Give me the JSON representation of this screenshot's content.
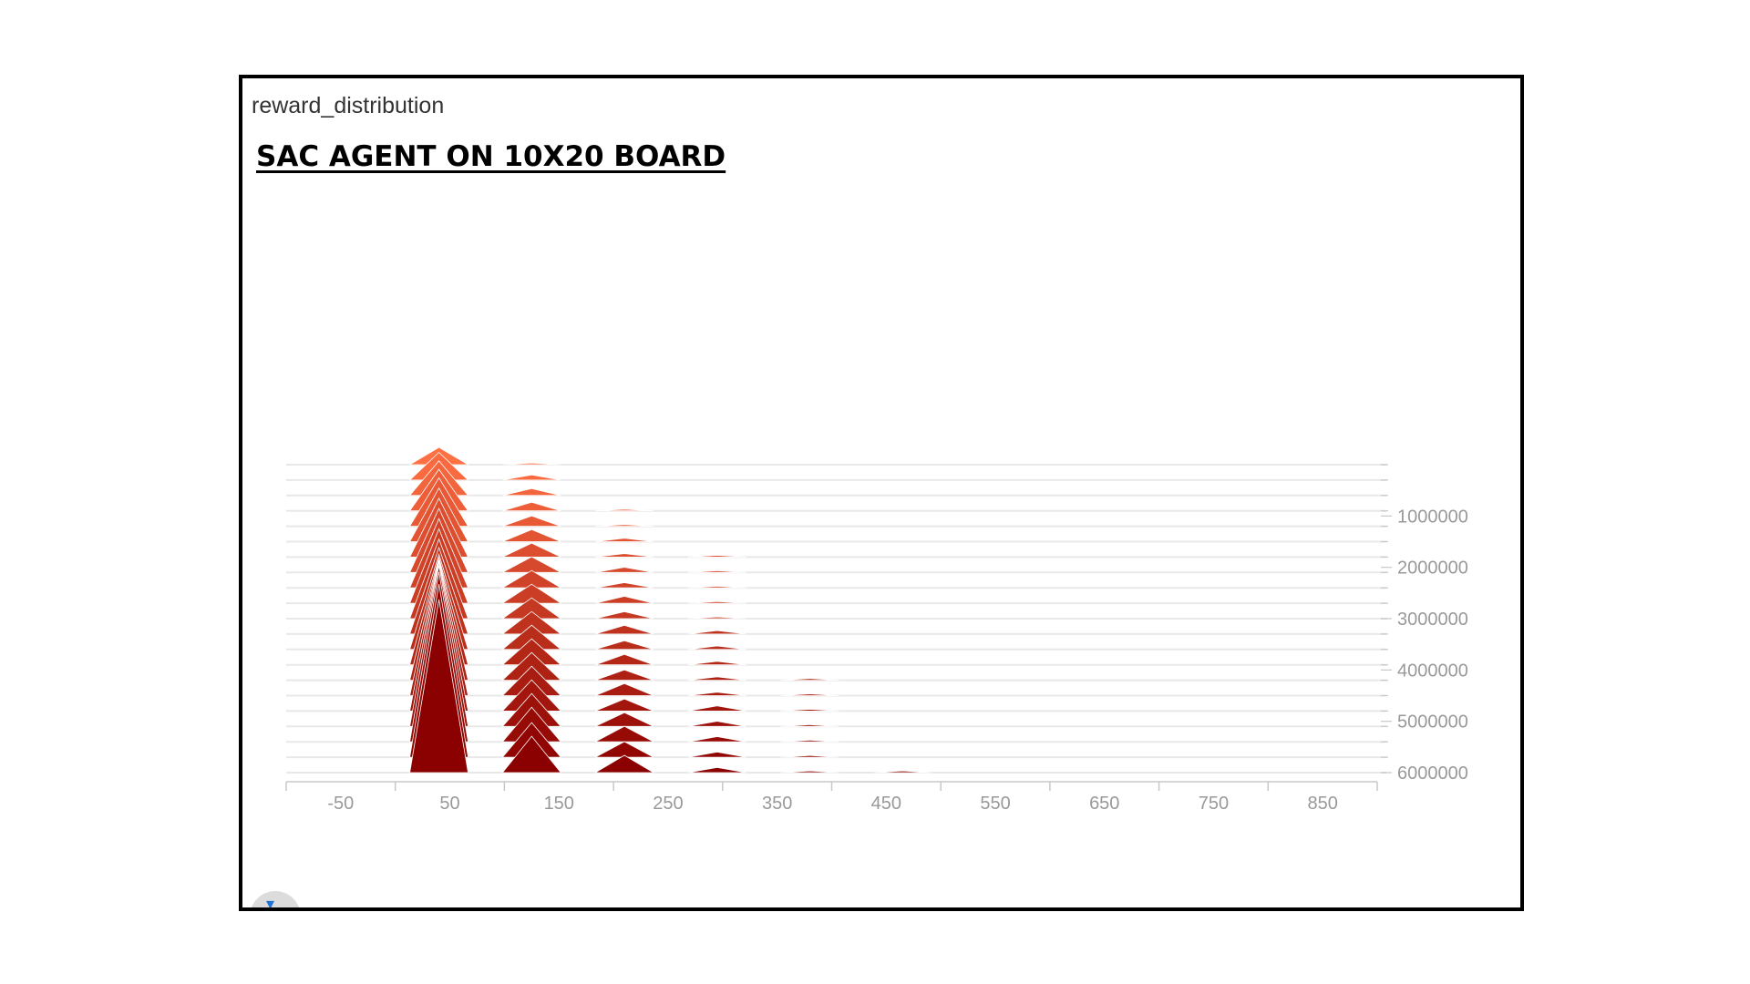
{
  "panel": {
    "title": "reward_distribution"
  },
  "chart_data": {
    "type": "area",
    "title": "SAC AGENT ON 10X20 BOARD",
    "xlabel": "",
    "ylabel": "",
    "x_ticks": [
      -50,
      50,
      150,
      250,
      350,
      450,
      550,
      650,
      750,
      850
    ],
    "xlim": [
      -100,
      900
    ],
    "step_ticks": [
      1000000,
      2000000,
      3000000,
      4000000,
      5000000,
      6000000
    ],
    "steps": [
      0,
      300000,
      600000,
      900000,
      1200000,
      1500000,
      1800000,
      2100000,
      2400000,
      2700000,
      3000000,
      3300000,
      3600000,
      3900000,
      4200000,
      4500000,
      4800000,
      5100000,
      5400000,
      5700000,
      6000000
    ],
    "step_range": [
      0,
      6300000
    ],
    "peak_centers": [
      40,
      125,
      210,
      295,
      380,
      465
    ],
    "peak_values": {
      "40": [
        0.1,
        0.16,
        0.2,
        0.24,
        0.28,
        0.31,
        0.34,
        0.37,
        0.4,
        0.43,
        0.46,
        0.5,
        0.55,
        0.62,
        0.7,
        0.78,
        0.86,
        0.93,
        0.98,
        1.0,
        1.0
      ],
      "125": [
        0.01,
        0.03,
        0.04,
        0.05,
        0.06,
        0.07,
        0.08,
        0.09,
        0.1,
        0.11,
        0.12,
        0.13,
        0.14,
        0.15,
        0.16,
        0.17,
        0.18,
        0.19,
        0.2,
        0.2,
        0.21
      ],
      "210": [
        0.0,
        0.0,
        0.0,
        0.01,
        0.01,
        0.02,
        0.02,
        0.03,
        0.03,
        0.04,
        0.04,
        0.05,
        0.05,
        0.06,
        0.06,
        0.07,
        0.07,
        0.08,
        0.09,
        0.09,
        0.1
      ],
      "295": [
        0.0,
        0.0,
        0.0,
        0.0,
        0.0,
        0.0,
        0.01,
        0.01,
        0.01,
        0.01,
        0.01,
        0.02,
        0.02,
        0.02,
        0.02,
        0.02,
        0.03,
        0.03,
        0.03,
        0.03,
        0.03
      ],
      "380": [
        0.0,
        0.0,
        0.0,
        0.0,
        0.0,
        0.0,
        0.0,
        0.0,
        0.0,
        0.0,
        0.0,
        0.0,
        0.0,
        0.0,
        0.01,
        0.01,
        0.01,
        0.01,
        0.01,
        0.01,
        0.01
      ],
      "465": [
        0.0,
        0.0,
        0.0,
        0.0,
        0.0,
        0.0,
        0.0,
        0.0,
        0.0,
        0.0,
        0.0,
        0.0,
        0.0,
        0.0,
        0.0,
        0.0,
        0.0,
        0.0,
        0.0,
        0.0,
        0.01
      ]
    },
    "colors": {
      "early": "#ff7043",
      "late": "#8b0000",
      "baseline": "#e8e8e8",
      "axis": "#c8c8c8",
      "tick_label": "#999999"
    },
    "grid": false,
    "legend": "none"
  }
}
